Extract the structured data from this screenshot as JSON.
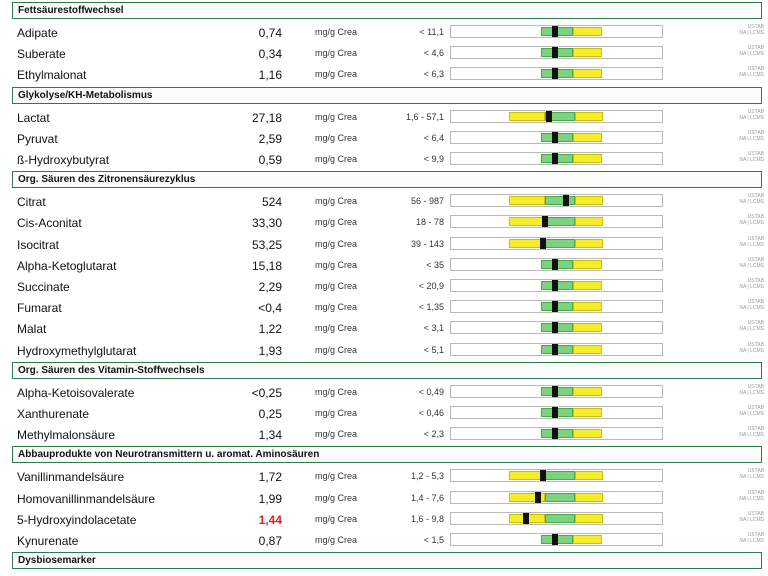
{
  "method_label_line1": "USTAB",
  "method_label_line2": "NA | LCMS",
  "sections": [
    {
      "title": "Fettsäurestoffwechsel",
      "rows": [
        {
          "name": "Adipate",
          "value": "0,74",
          "unit": "mg/g Crea",
          "range": "< 11,1",
          "marker": 0.49,
          "scale": "upper"
        },
        {
          "name": "Suberate",
          "value": "0,34",
          "unit": "mg/g Crea",
          "range": "< 4,6",
          "marker": 0.49,
          "scale": "upper"
        },
        {
          "name": "Ethylmalonat",
          "value": "1,16",
          "unit": "mg/g Crea",
          "range": "< 6,3",
          "marker": 0.49,
          "scale": "upper"
        }
      ]
    },
    {
      "title": "Glykolyse/KH-Metabolismus",
      "rows": [
        {
          "name": "Lactat",
          "value": "27,18",
          "unit": "mg/g Crea",
          "range": "1,6 - 57,1",
          "marker": 0.46,
          "scale": "range"
        },
        {
          "name": "Pyruvat",
          "value": "2,59",
          "unit": "mg/g Crea",
          "range": "< 6,4",
          "marker": 0.49,
          "scale": "upper"
        },
        {
          "name": "ß-Hydroxybutyrat",
          "value": "0,59",
          "unit": "mg/g Crea",
          "range": "< 9,9",
          "marker": 0.49,
          "scale": "upper"
        }
      ]
    },
    {
      "title": "Org. Säuren des Zitronensäurezyklus",
      "rows": [
        {
          "name": "Citrat",
          "value": "524",
          "unit": "mg/g Crea",
          "range": "56 - 987",
          "marker": 0.54,
          "scale": "range"
        },
        {
          "name": "Cis-Aconitat",
          "value": "33,30",
          "unit": "mg/g Crea",
          "range": "18 - 78",
          "marker": 0.44,
          "scale": "range"
        },
        {
          "name": "Isocitrat",
          "value": "53,25",
          "unit": "mg/g Crea",
          "range": "39 - 143",
          "marker": 0.43,
          "scale": "range"
        },
        {
          "name": "Alpha-Ketoglutarat",
          "value": "15,18",
          "unit": "mg/g Crea",
          "range": "< 35",
          "marker": 0.49,
          "scale": "upper"
        },
        {
          "name": "Succinate",
          "value": "2,29",
          "unit": "mg/g Crea",
          "range": "< 20,9",
          "marker": 0.49,
          "scale": "upper"
        },
        {
          "name": "Fumarat",
          "value": "<0,4",
          "unit": "mg/g Crea",
          "range": "< 1,35",
          "marker": 0.49,
          "scale": "upper"
        },
        {
          "name": "Malat",
          "value": "1,22",
          "unit": "mg/g Crea",
          "range": "< 3,1",
          "marker": 0.49,
          "scale": "upper"
        },
        {
          "name": "Hydroxymethylglutarat",
          "value": "1,93",
          "unit": "mg/g Crea",
          "range": "< 5,1",
          "marker": 0.49,
          "scale": "upper"
        }
      ]
    },
    {
      "title": "Org. Säuren des Vitamin-Stoffwechsels",
      "rows": [
        {
          "name": "Alpha-Ketoisovalerate",
          "value": "<0,25",
          "unit": "mg/g Crea",
          "range": "< 0,49",
          "marker": 0.49,
          "scale": "upper"
        },
        {
          "name": "Xanthurenate",
          "value": "0,25",
          "unit": "mg/g Crea",
          "range": "< 0,46",
          "marker": 0.49,
          "scale": "upper"
        },
        {
          "name": "Methylmalonsäure",
          "value": "1,34",
          "unit": "mg/g Crea",
          "range": "< 2,3",
          "marker": 0.49,
          "scale": "upper"
        }
      ]
    },
    {
      "title": "Abbauprodukte von Neurotransmittern u. aromat. Aminosäuren",
      "rows": [
        {
          "name": "Vanillinmandelsäure",
          "value": "1,72",
          "unit": "mg/g Crea",
          "range": "1,2 - 5,3",
          "marker": 0.43,
          "scale": "range"
        },
        {
          "name": "Homovanillinmandelsäure",
          "value": "1,99",
          "unit": "mg/g Crea",
          "range": "1,4 - 7,6",
          "marker": 0.41,
          "scale": "range"
        },
        {
          "name": "5-Hydroxyindolacetate",
          "value": "1,44",
          "unit": "mg/g Crea",
          "range": "1,6 - 9,8",
          "marker": 0.35,
          "scale": "range",
          "flag": true
        },
        {
          "name": "Kynurenate",
          "value": "0,87",
          "unit": "mg/g Crea",
          "range": "< 1,5",
          "marker": 0.49,
          "scale": "upper"
        }
      ]
    },
    {
      "title": "Dysbiosemarker",
      "rows": []
    }
  ]
}
